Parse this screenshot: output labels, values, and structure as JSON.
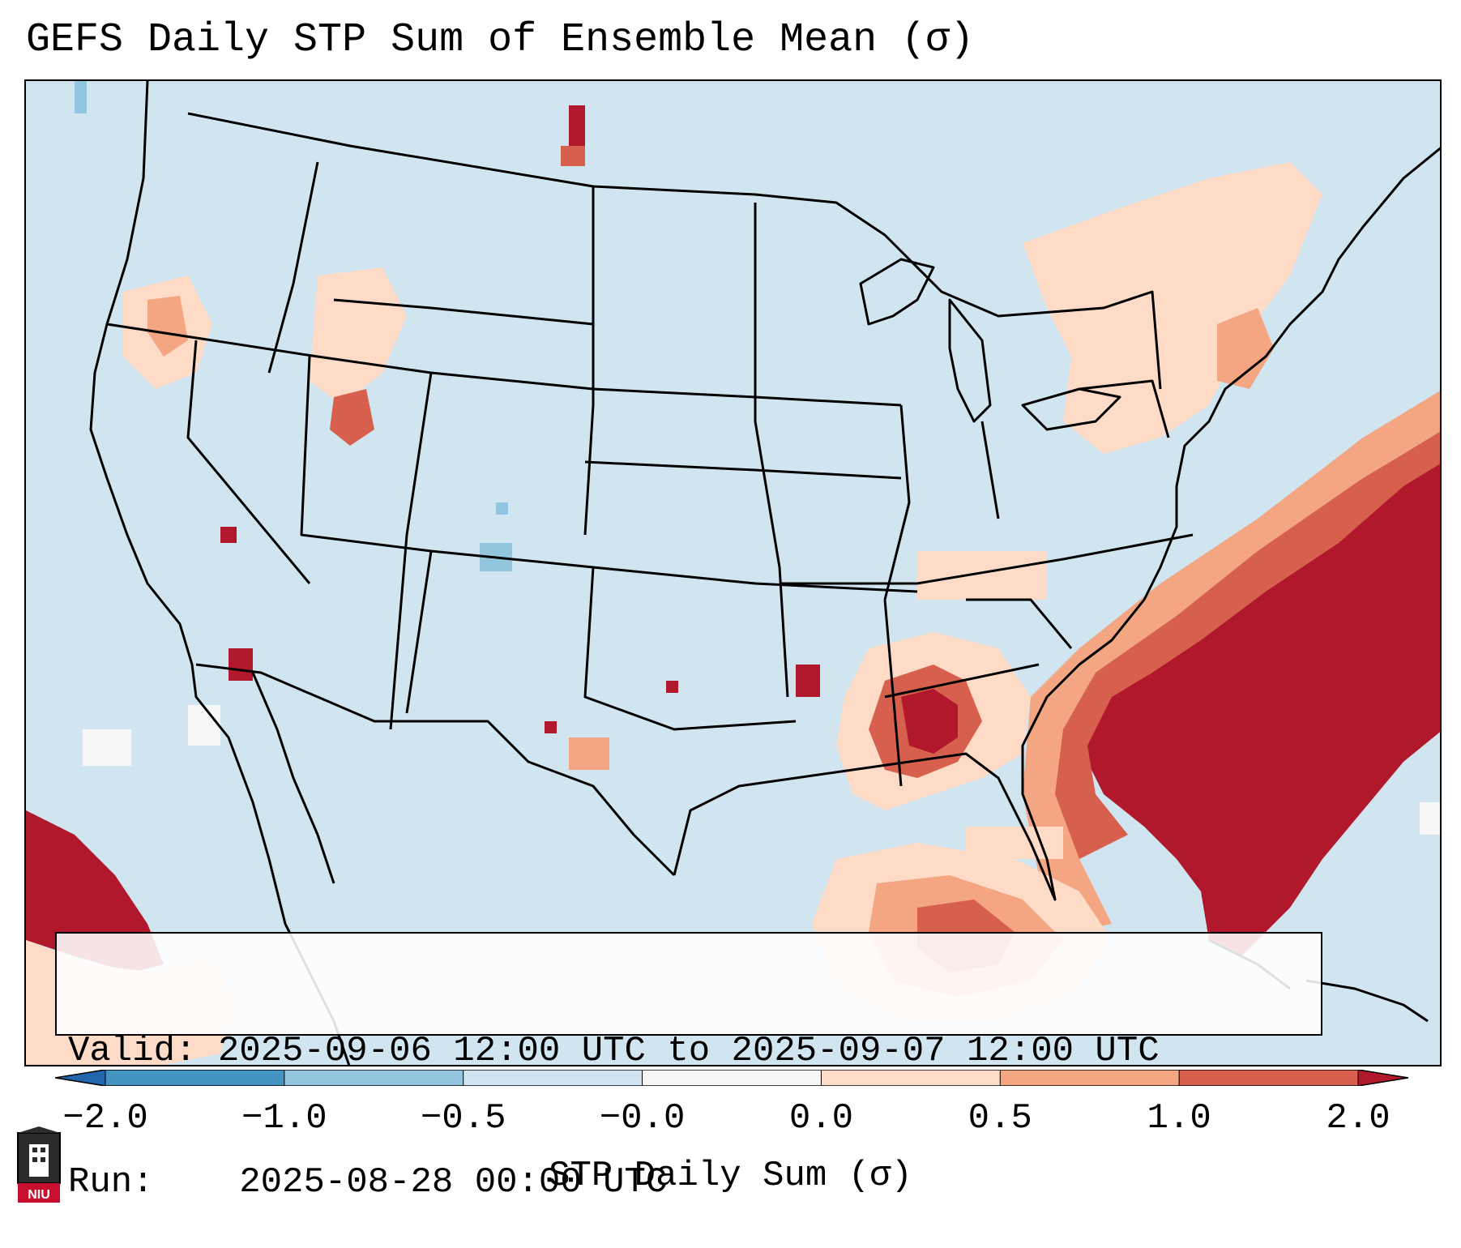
{
  "title": "GEFS Daily STP Sum of Ensemble Mean (σ)",
  "info": {
    "valid_label": "Valid:",
    "valid_value": "2025-09-06 12:00 UTC to 2025-09-07 12:00 UTC",
    "run_label": "Run:",
    "run_value": "2025-08-28 00:00 UTC"
  },
  "colorbar": {
    "label": "STP Daily Sum (σ)",
    "ticks": [
      "−2.0",
      "−1.0",
      "−0.5",
      "−0.0",
      "0.0",
      "0.5",
      "1.0",
      "2.0"
    ],
    "colors": [
      "#2166ac",
      "#4393c3",
      "#92c5de",
      "#d1e5f0",
      "#f7f7f7",
      "#fddbc7",
      "#f4a582",
      "#d6604d",
      "#b2182b"
    ]
  },
  "logo": {
    "text": "NIU",
    "color": "#c8102e"
  },
  "colors": {
    "ocean_background": "#d1e5f0",
    "very_light_positive": "#fddbc7",
    "light_positive": "#f4a582",
    "moderate_positive": "#d6604d",
    "strong_positive": "#b2182b",
    "light_negative": "#92c5de",
    "neutral": "#f7f7f7",
    "boundaries": "#000000"
  }
}
